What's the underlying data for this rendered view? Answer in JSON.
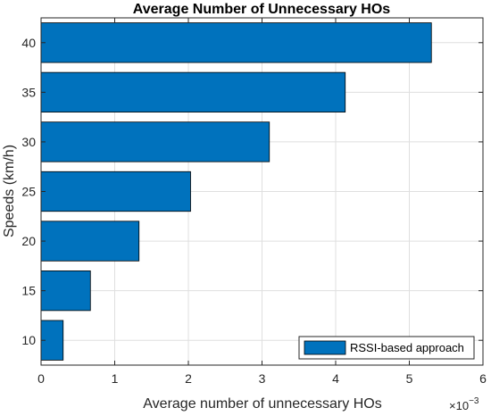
{
  "chart_data": {
    "type": "bar",
    "orientation": "horizontal",
    "title": "Average Number of Unnecessary HOs",
    "xlabel": "Average number of unnecessary HOs",
    "ylabel": "Speeds (km/h)",
    "x_scale_label": "×10",
    "x_scale_exponent": "−3",
    "categories": [
      "10",
      "15",
      "20",
      "25",
      "30",
      "35",
      "40"
    ],
    "series": [
      {
        "name": "RSSI-based approach",
        "values": [
          0.3,
          0.67,
          1.33,
          2.03,
          3.1,
          4.13,
          5.3
        ],
        "color": "#0072bd"
      }
    ],
    "xlim": [
      0,
      6
    ],
    "x_ticks": [
      "0",
      "1",
      "2",
      "3",
      "4",
      "5",
      "6"
    ],
    "grid": true,
    "legend_position": "bottom-right"
  }
}
